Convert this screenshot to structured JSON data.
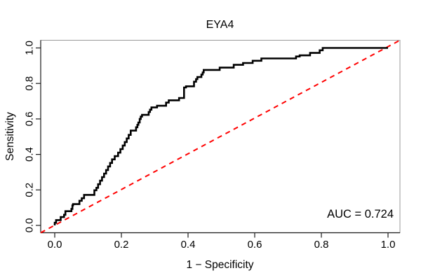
{
  "chart_data": {
    "type": "line",
    "subtype": "roc-step-curve",
    "title": "EYA4",
    "xlabel": "1 − Specificity",
    "ylabel": "Sensitivity",
    "xlim": [
      0,
      1
    ],
    "ylim": [
      0,
      1
    ],
    "grid": "off",
    "x_ticks": [
      "0.0",
      "0.2",
      "0.4",
      "0.6",
      "0.8",
      "1.0"
    ],
    "y_ticks": [
      "0.0",
      "0.2",
      "0.4",
      "0.6",
      "0.8",
      "1.0"
    ],
    "annotation": "AUC = 0.724",
    "auc": 0.724,
    "annotation_position": "bottom-right",
    "colors": {
      "curve": "#000000",
      "reference": "#FF0000",
      "frame": "#999999",
      "axis": "#1a1a1a",
      "background": "#ffffff"
    },
    "series": [
      {
        "name": "ROC curve",
        "color": "#000000",
        "style": "solid",
        "points": [
          [
            0,
            0
          ],
          [
            0,
            0.015
          ],
          [
            0.004,
            0.015
          ],
          [
            0.004,
            0.03
          ],
          [
            0.018,
            0.03
          ],
          [
            0.018,
            0.047
          ],
          [
            0.028,
            0.047
          ],
          [
            0.028,
            0.06
          ],
          [
            0.032,
            0.06
          ],
          [
            0.032,
            0.08
          ],
          [
            0.05,
            0.08
          ],
          [
            0.05,
            0.093
          ],
          [
            0.053,
            0.093
          ],
          [
            0.053,
            0.113
          ],
          [
            0.055,
            0.113
          ],
          [
            0.055,
            0.12
          ],
          [
            0.074,
            0.12
          ],
          [
            0.074,
            0.139
          ],
          [
            0.081,
            0.139
          ],
          [
            0.081,
            0.153
          ],
          [
            0.088,
            0.153
          ],
          [
            0.088,
            0.172
          ],
          [
            0.119,
            0.172
          ],
          [
            0.119,
            0.198
          ],
          [
            0.125,
            0.198
          ],
          [
            0.125,
            0.212
          ],
          [
            0.13,
            0.212
          ],
          [
            0.13,
            0.232
          ],
          [
            0.136,
            0.232
          ],
          [
            0.136,
            0.252
          ],
          [
            0.142,
            0.252
          ],
          [
            0.142,
            0.272
          ],
          [
            0.148,
            0.272
          ],
          [
            0.148,
            0.292
          ],
          [
            0.154,
            0.292
          ],
          [
            0.154,
            0.312
          ],
          [
            0.16,
            0.312
          ],
          [
            0.16,
            0.332
          ],
          [
            0.166,
            0.332
          ],
          [
            0.166,
            0.352
          ],
          [
            0.172,
            0.352
          ],
          [
            0.172,
            0.372
          ],
          [
            0.18,
            0.372
          ],
          [
            0.18,
            0.39
          ],
          [
            0.19,
            0.39
          ],
          [
            0.19,
            0.41
          ],
          [
            0.197,
            0.41
          ],
          [
            0.197,
            0.43
          ],
          [
            0.204,
            0.43
          ],
          [
            0.204,
            0.45
          ],
          [
            0.21,
            0.45
          ],
          [
            0.21,
            0.47
          ],
          [
            0.216,
            0.47
          ],
          [
            0.216,
            0.49
          ],
          [
            0.222,
            0.49
          ],
          [
            0.222,
            0.51
          ],
          [
            0.228,
            0.51
          ],
          [
            0.228,
            0.534
          ],
          [
            0.244,
            0.534
          ],
          [
            0.244,
            0.553
          ],
          [
            0.248,
            0.553
          ],
          [
            0.248,
            0.567
          ],
          [
            0.251,
            0.567
          ],
          [
            0.251,
            0.58
          ],
          [
            0.255,
            0.58
          ],
          [
            0.255,
            0.6
          ],
          [
            0.258,
            0.6
          ],
          [
            0.258,
            0.613
          ],
          [
            0.262,
            0.613
          ],
          [
            0.262,
            0.623
          ],
          [
            0.282,
            0.623
          ],
          [
            0.282,
            0.639
          ],
          [
            0.286,
            0.639
          ],
          [
            0.286,
            0.652
          ],
          [
            0.29,
            0.652
          ],
          [
            0.29,
            0.665
          ],
          [
            0.307,
            0.665
          ],
          [
            0.307,
            0.674
          ],
          [
            0.334,
            0.674
          ],
          [
            0.334,
            0.692
          ],
          [
            0.342,
            0.692
          ],
          [
            0.342,
            0.705
          ],
          [
            0.349,
            0.705
          ],
          [
            0.373,
            0.705
          ],
          [
            0.373,
            0.718
          ],
          [
            0.388,
            0.718
          ],
          [
            0.388,
            0.777
          ],
          [
            0.394,
            0.777
          ],
          [
            0.394,
            0.784
          ],
          [
            0.418,
            0.784
          ],
          [
            0.418,
            0.81
          ],
          [
            0.424,
            0.81
          ],
          [
            0.424,
            0.824
          ],
          [
            0.428,
            0.824
          ],
          [
            0.428,
            0.836
          ],
          [
            0.44,
            0.836
          ],
          [
            0.44,
            0.85
          ],
          [
            0.444,
            0.85
          ],
          [
            0.444,
            0.862
          ],
          [
            0.447,
            0.862
          ],
          [
            0.447,
            0.876
          ],
          [
            0.495,
            0.876
          ],
          [
            0.495,
            0.889
          ],
          [
            0.537,
            0.889
          ],
          [
            0.537,
            0.905
          ],
          [
            0.565,
            0.905
          ],
          [
            0.565,
            0.915
          ],
          [
            0.594,
            0.915
          ],
          [
            0.594,
            0.928
          ],
          [
            0.62,
            0.928
          ],
          [
            0.62,
            0.941
          ],
          [
            0.724,
            0.941
          ],
          [
            0.724,
            0.952
          ],
          [
            0.735,
            0.952
          ],
          [
            0.735,
            0.958
          ],
          [
            0.766,
            0.958
          ],
          [
            0.766,
            0.972
          ],
          [
            0.795,
            0.972
          ],
          [
            0.795,
            0.987
          ],
          [
            0.804,
            0.987
          ],
          [
            0.804,
            1
          ],
          [
            1,
            1
          ]
        ]
      },
      {
        "name": "Chance diagonal",
        "color": "#FF0000",
        "style": "dashed",
        "points": [
          [
            0,
            0
          ],
          [
            1,
            1
          ]
        ]
      }
    ]
  }
}
